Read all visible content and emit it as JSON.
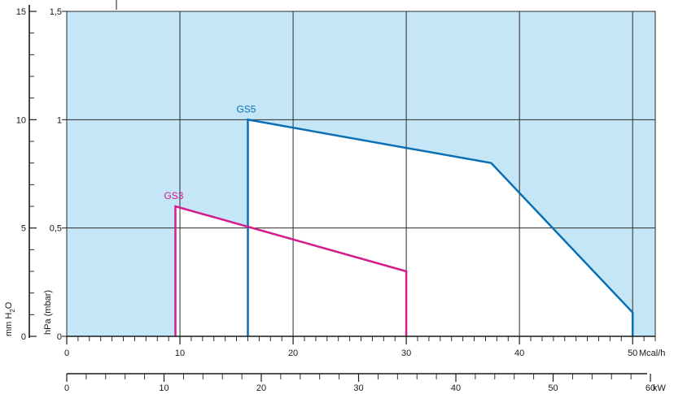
{
  "chart_data": {
    "type": "line",
    "title": "",
    "colors": {
      "background_region": "#c5e6f7",
      "grid": "#2a2a2a",
      "GS5": "#0a6fb3",
      "GS3": "#d41c8c"
    },
    "axes": {
      "x_primary": {
        "unit": "Mcal/h",
        "range": [
          0,
          52
        ],
        "ticks": [
          0,
          10,
          20,
          30,
          40,
          50
        ],
        "tick_labels": [
          "0",
          "10",
          "20",
          "30",
          "40",
          "50"
        ]
      },
      "x_secondary": {
        "unit": "kW",
        "range": [
          0,
          60.5
        ],
        "ticks": [
          0,
          10,
          20,
          30,
          40,
          50,
          60
        ],
        "tick_labels": [
          "0",
          "10",
          "20",
          "30",
          "40",
          "50",
          "60"
        ]
      },
      "y_primary": {
        "unit": "hPa (mbar)",
        "range": [
          0,
          1.5
        ],
        "ticks": [
          0,
          0.5,
          1,
          1.5
        ],
        "tick_labels": [
          "0",
          "0,5",
          "1",
          "1,5"
        ]
      },
      "y_secondary": {
        "unit_text": "mm H",
        "unit_subscript": "2",
        "unit_suffix": "O",
        "range": [
          0,
          15
        ],
        "ticks": [
          0,
          5,
          10,
          15
        ],
        "tick_labels": [
          "0",
          "5",
          "10",
          "15"
        ]
      }
    },
    "grid": true,
    "series": [
      {
        "name": "GS5",
        "points": [
          [
            16,
            0
          ],
          [
            16,
            1.0
          ],
          [
            37.5,
            0.8
          ],
          [
            50,
            0.11
          ],
          [
            50,
            0
          ]
        ]
      },
      {
        "name": "GS3",
        "points": [
          [
            9.6,
            0
          ],
          [
            9.6,
            0.6
          ],
          [
            30,
            0.3
          ],
          [
            30,
            0
          ]
        ]
      }
    ]
  }
}
